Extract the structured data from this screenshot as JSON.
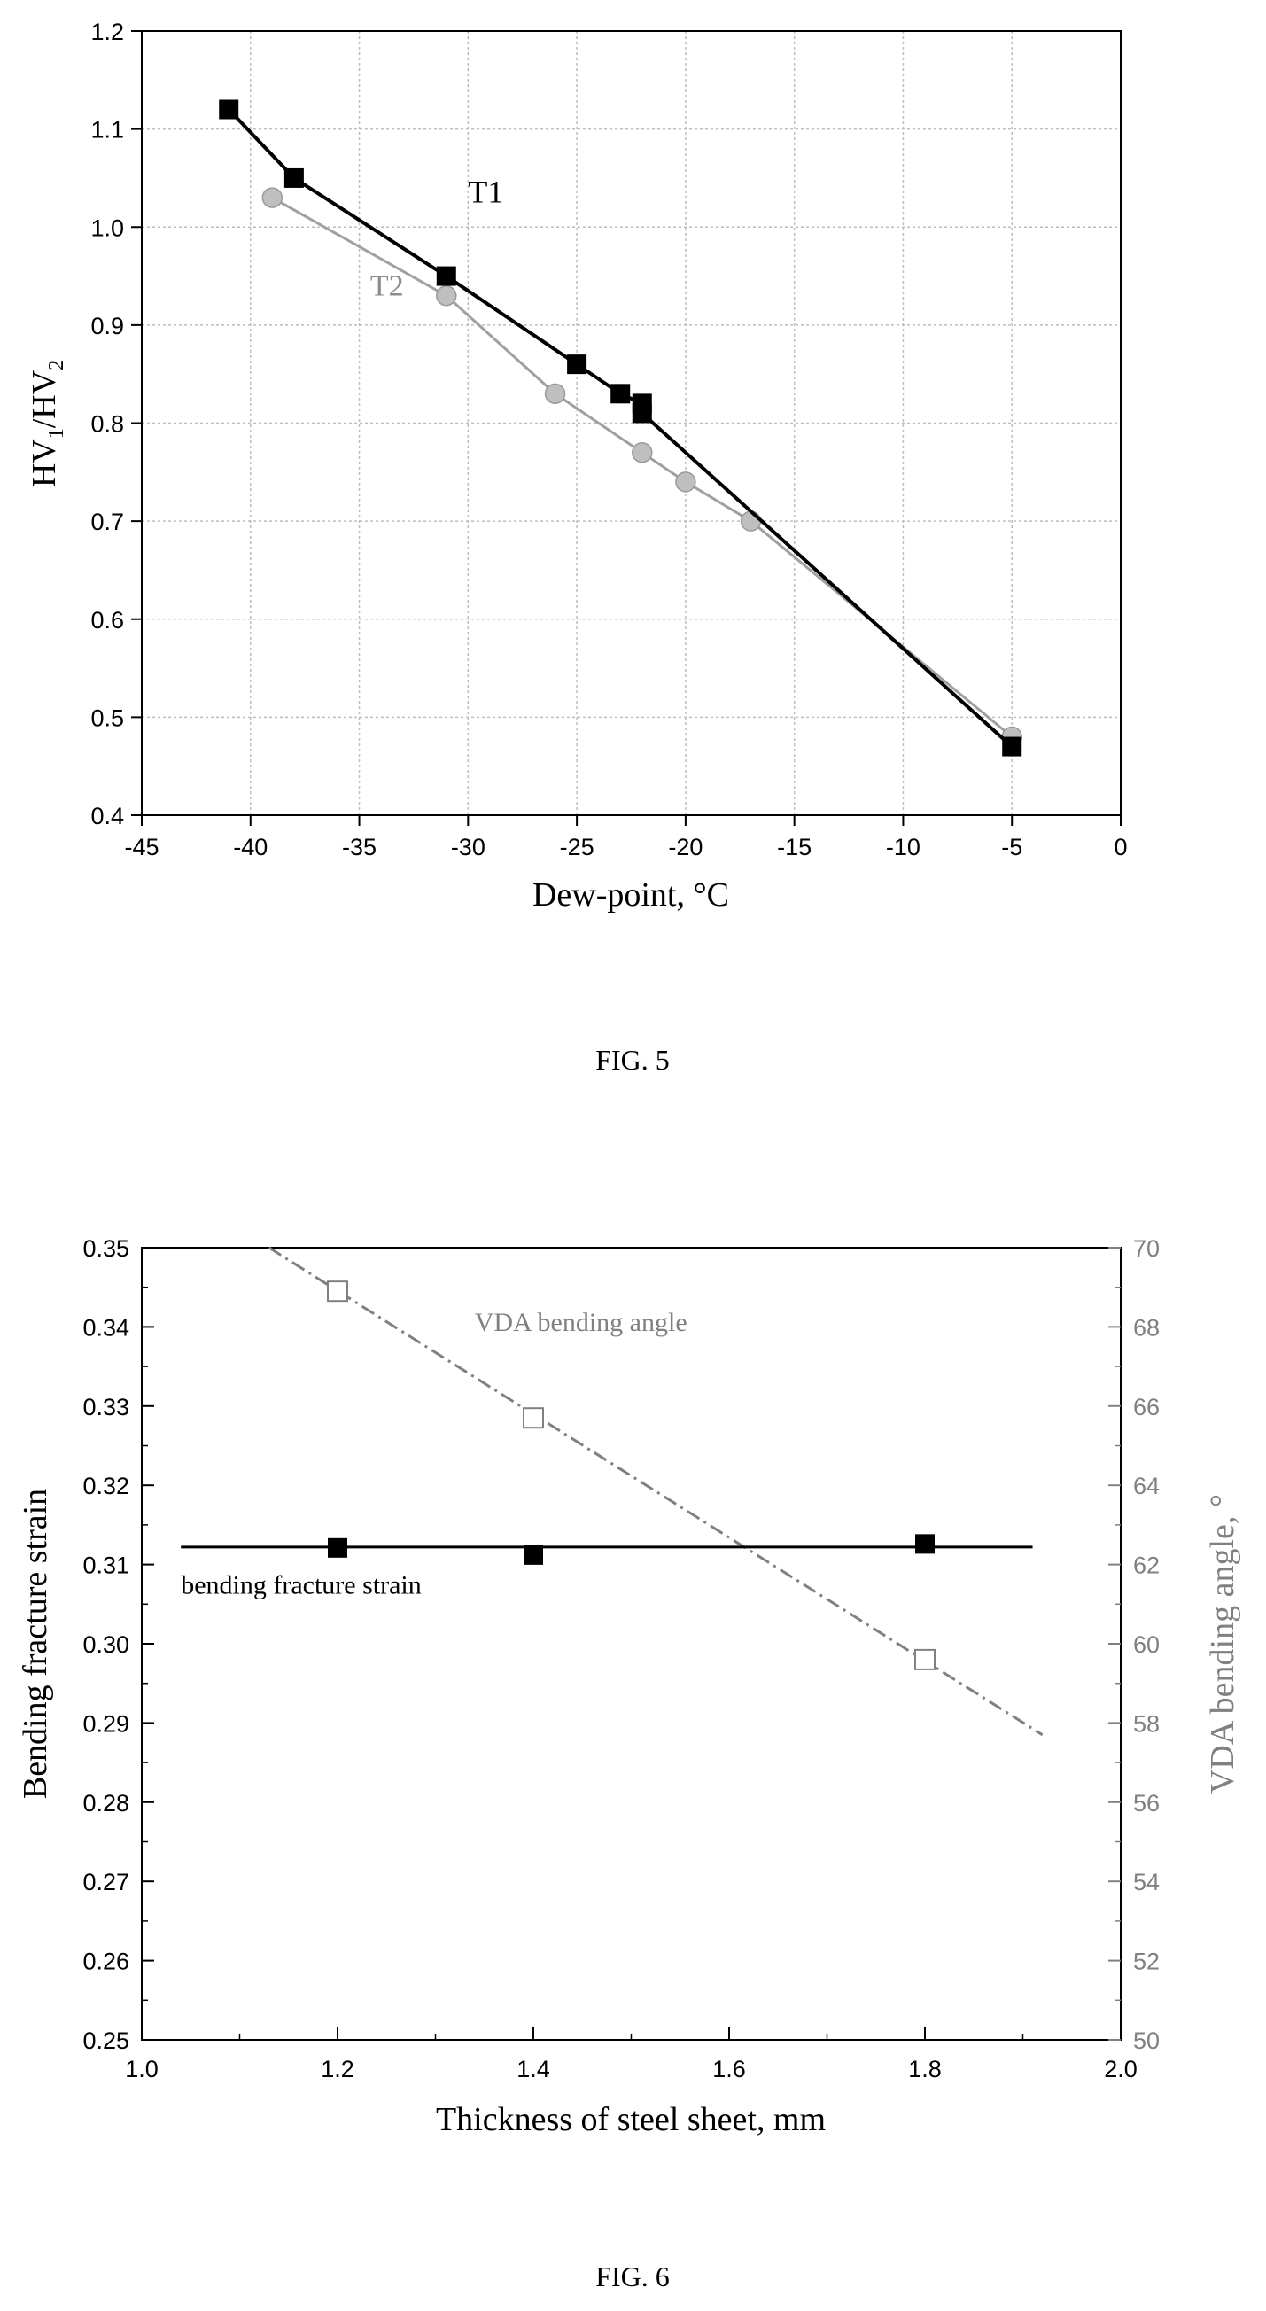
{
  "figures": [
    {
      "caption": "FIG. 5"
    },
    {
      "caption": "FIG. 6"
    }
  ],
  "chart_data": [
    {
      "type": "line",
      "title": "",
      "xlabel": "Dew-point, °C",
      "ylabel_main": "HV",
      "ylabel_sub1": "1",
      "ylabel_mid": "/HV",
      "ylabel_sub2": "2",
      "xlim": [
        -45,
        0
      ],
      "ylim": [
        0.4,
        1.2
      ],
      "xticks": [
        -45,
        -40,
        -35,
        -30,
        -25,
        -20,
        -15,
        -10,
        -5,
        0
      ],
      "xtick_labels": [
        "-45",
        "-40",
        "-35",
        "-30",
        "-25",
        "-20",
        "-15",
        "-10",
        "-5",
        "0"
      ],
      "yticks": [
        0.4,
        0.5,
        0.6,
        0.7,
        0.8,
        0.9,
        1.0,
        1.1,
        1.2
      ],
      "ytick_labels": [
        "0.4",
        "0.5",
        "0.6",
        "0.7",
        "0.8",
        "0.9",
        "1.0",
        "1.1",
        "1.2"
      ],
      "grid": true,
      "series": [
        {
          "name": "T1",
          "color": "#000000",
          "marker": "filled-square",
          "points": [
            [
              -41,
              1.12
            ],
            [
              -38,
              1.05
            ],
            [
              -31,
              0.95
            ],
            [
              -25,
              0.86
            ],
            [
              -23,
              0.83
            ],
            [
              -22,
              0.82
            ],
            [
              -22,
              0.81
            ],
            [
              -5,
              0.47
            ]
          ],
          "label_anchor": [
            -30,
            1.025
          ]
        },
        {
          "name": "T2",
          "color": "#8c8c8c",
          "marker": "filled-circle",
          "points": [
            [
              -39,
              1.03
            ],
            [
              -31,
              0.93
            ],
            [
              -26,
              0.83
            ],
            [
              -22,
              0.77
            ],
            [
              -20,
              0.74
            ],
            [
              -17,
              0.7
            ],
            [
              -5,
              0.48
            ]
          ],
          "label_anchor": [
            -34.5,
            0.93
          ]
        }
      ]
    },
    {
      "type": "line",
      "title": "",
      "xlabel": "Thickness of steel sheet, mm",
      "ylabel_left": "Bending fracture strain",
      "ylabel_right": "VDA bending angle, °",
      "xlim": [
        1.0,
        2.0
      ],
      "ylim_left": [
        0.25,
        0.35
      ],
      "ylim_right": [
        50,
        70
      ],
      "xticks": [
        1.0,
        1.2,
        1.4,
        1.6,
        1.8,
        2.0
      ],
      "xtick_labels": [
        "1.0",
        "1.2",
        "1.4",
        "1.6",
        "1.8",
        "2.0"
      ],
      "yticks_left": [
        0.25,
        0.26,
        0.27,
        0.28,
        0.29,
        0.3,
        0.31,
        0.32,
        0.33,
        0.34,
        0.35
      ],
      "ytick_labels_left": [
        "0.25",
        "0.26",
        "0.27",
        "0.28",
        "0.29",
        "0.30",
        "0.31",
        "0.32",
        "0.33",
        "0.34",
        "0.35"
      ],
      "yticks_right": [
        50,
        52,
        54,
        56,
        58,
        60,
        62,
        64,
        66,
        68,
        70
      ],
      "ytick_labels_right": [
        "50",
        "52",
        "54",
        "56",
        "58",
        "60",
        "62",
        "64",
        "66",
        "68",
        "70"
      ],
      "grid": false,
      "series": [
        {
          "name": "bending fracture strain",
          "axis": "left",
          "color": "#000000",
          "marker": "filled-square",
          "points": [
            [
              1.2,
              0.3121
            ],
            [
              1.4,
              0.3112
            ],
            [
              1.8,
              0.3126
            ]
          ],
          "fit_line": [
            [
              1.04,
              0.3122
            ],
            [
              1.91,
              0.3122
            ]
          ],
          "label_anchor": [
            1.04,
            0.3063
          ]
        },
        {
          "name": "VDA bending angle",
          "axis": "right",
          "color": "#808080",
          "marker": "open-square",
          "points": [
            [
              1.2,
              68.9
            ],
            [
              1.4,
              65.7
            ],
            [
              1.8,
              59.6
            ]
          ],
          "fit_line": [
            [
              1.13,
              70.0
            ],
            [
              1.92,
              57.7
            ]
          ],
          "label_anchor": [
            1.34,
            67.9
          ]
        }
      ]
    }
  ]
}
